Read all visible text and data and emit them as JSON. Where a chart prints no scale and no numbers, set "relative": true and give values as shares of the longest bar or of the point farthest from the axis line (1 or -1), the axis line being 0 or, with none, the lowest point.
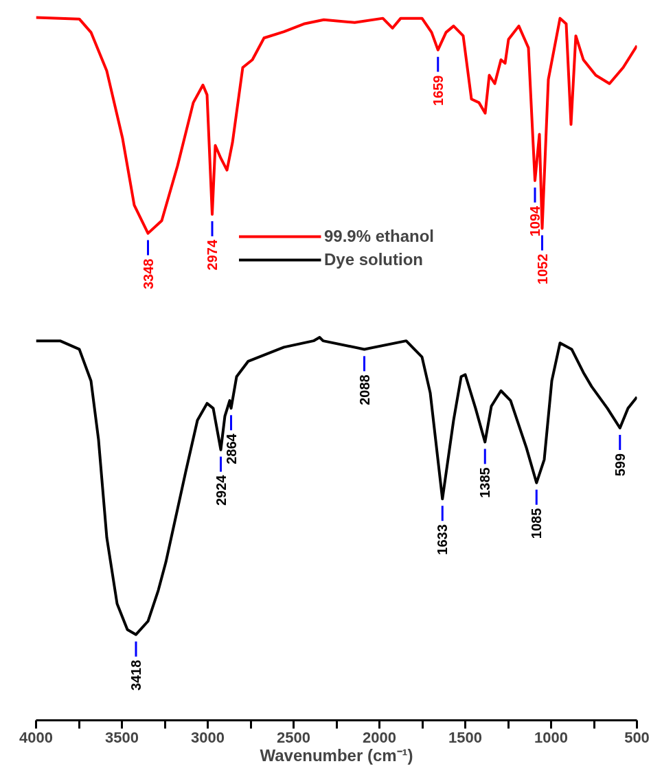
{
  "chart_data": {
    "type": "line",
    "relative": true,
    "xlabel": "Wavenumber (cm⁻¹)",
    "xlim": [
      4000,
      500
    ],
    "xticks": [
      4000,
      {
        "value": 3750,
        "label": null
      },
      3500,
      {
        "value": 3250,
        "label": null
      },
      3000,
      {
        "value": 2750,
        "label": null
      },
      2500,
      {
        "value": 2250,
        "label": null
      },
      2000,
      {
        "value": 1750,
        "label": null
      },
      1500,
      {
        "value": 1250,
        "label": null
      },
      1000,
      {
        "value": 750,
        "label": null
      },
      500
    ],
    "tick_labels": "x",
    "grid": false,
    "legend": "top",
    "marker": "none",
    "line_style": "solid",
    "series": [
      {
        "name": "99.9% ethanol",
        "color": "#ff0000",
        "x": [
          4000,
          3748,
          3680,
          3588,
          3496,
          3428,
          3348,
          3268,
          3176,
          3084,
          3028,
          3004,
          2974,
          2956,
          2924,
          2888,
          2856,
          2796,
          2740,
          2672,
          2556,
          2440,
          2324,
          2144,
          1980,
          1924,
          1876,
          1752,
          1696,
          1659,
          1612,
          1568,
          1512,
          1464,
          1420,
          1384,
          1360,
          1328,
          1292,
          1268,
          1248,
          1188,
          1132,
          1094,
          1068,
          1052,
          1016,
          948,
          912,
          884,
          856,
          812,
          740,
          660,
          580,
          500
        ],
        "values": [
          1.0,
          0.998,
          0.979,
          0.924,
          0.828,
          0.733,
          0.693,
          0.711,
          0.789,
          0.879,
          0.904,
          0.89,
          0.72,
          0.818,
          0.8,
          0.783,
          0.822,
          0.929,
          0.94,
          0.971,
          0.98,
          0.991,
          0.997,
          0.993,
          0.999,
          0.985,
          0.999,
          0.999,
          0.979,
          0.954,
          0.979,
          0.988,
          0.974,
          0.884,
          0.879,
          0.864,
          0.918,
          0.906,
          0.94,
          0.935,
          0.969,
          0.988,
          0.957,
          0.768,
          0.834,
          0.7,
          0.912,
          0.999,
          0.991,
          0.848,
          0.974,
          0.94,
          0.918,
          0.906,
          0.929,
          0.96
        ]
      },
      {
        "name": "Dye solution",
        "color": "#000000",
        "x": [
          4000,
          3860,
          3748,
          3680,
          3636,
          3588,
          3528,
          3468,
          3418,
          3348,
          3288,
          3244,
          3128,
          3060,
          3004,
          2968,
          2924,
          2900,
          2872,
          2864,
          2832,
          2764,
          2556,
          2384,
          2348,
          2328,
          2088,
          1844,
          1752,
          1704,
          1633,
          1568,
          1524,
          1500,
          1440,
          1385,
          1348,
          1292,
          1236,
          1144,
          1085,
          1040,
          996,
          948,
          880,
          812,
          764,
          672,
          599,
          552,
          500
        ],
        "values": [
          0.54,
          0.54,
          0.528,
          0.483,
          0.399,
          0.26,
          0.166,
          0.129,
          0.122,
          0.141,
          0.185,
          0.225,
          0.354,
          0.427,
          0.451,
          0.444,
          0.385,
          0.433,
          0.455,
          0.444,
          0.489,
          0.511,
          0.531,
          0.54,
          0.545,
          0.54,
          0.528,
          0.54,
          0.517,
          0.466,
          0.315,
          0.427,
          0.489,
          0.492,
          0.444,
          0.396,
          0.447,
          0.469,
          0.455,
          0.388,
          0.338,
          0.371,
          0.483,
          0.537,
          0.528,
          0.495,
          0.475,
          0.444,
          0.416,
          0.444,
          0.46
        ]
      }
    ],
    "annotations": [
      {
        "text": "3348",
        "x": 3348,
        "y": 0.693
      },
      {
        "text": "2974",
        "x": 2974,
        "y": 0.72
      },
      {
        "text": "1659",
        "x": 1659,
        "y": 0.954
      },
      {
        "text": "1094",
        "x": 1094,
        "y": 0.768
      },
      {
        "text": "1052",
        "x": 1052,
        "y": 0.7
      },
      {
        "text": "3418",
        "x": 3418,
        "y": 0.122
      },
      {
        "text": "2924",
        "x": 2924,
        "y": 0.385
      },
      {
        "text": "2864",
        "x": 2864,
        "y": 0.444
      },
      {
        "text": "2088",
        "x": 2088,
        "y": 0.528
      },
      {
        "text": "1633",
        "x": 1633,
        "y": 0.315
      },
      {
        "text": "1385",
        "x": 1385,
        "y": 0.396
      },
      {
        "text": "1085",
        "x": 1085,
        "y": 0.338
      },
      {
        "text": "599",
        "x": 599,
        "y": 0.416
      }
    ]
  }
}
